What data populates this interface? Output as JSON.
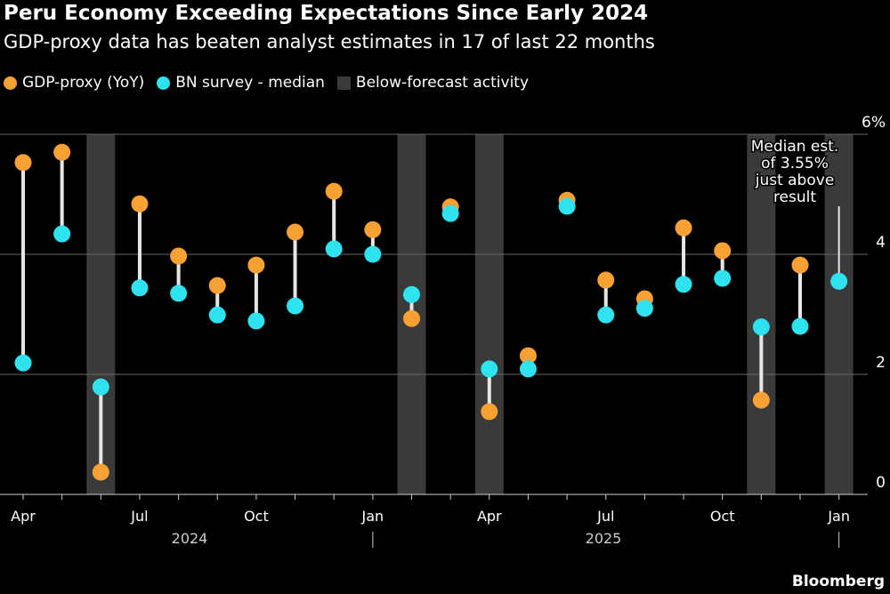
{
  "chart_data": {
    "type": "scatter",
    "title": "Peru Economy Exceeding Expectations Since Early 2024",
    "subtitle": "GDP-proxy data has beaten analyst estimates in 17 of last 22 months",
    "ylim": [
      0,
      6
    ],
    "yticks": [
      "0",
      "2",
      "4",
      "6%"
    ],
    "ytick_values": [
      0,
      2,
      4,
      6
    ],
    "grid": true,
    "legend_placement": "top-left",
    "months": [
      "2024-04",
      "2024-05",
      "2024-06",
      "2024-07",
      "2024-08",
      "2024-09",
      "2024-10",
      "2024-11",
      "2024-12",
      "2025-01",
      "2025-02",
      "2025-03",
      "2025-04",
      "2025-05",
      "2025-06",
      "2025-07",
      "2025-08",
      "2025-09",
      "2025-10",
      "2025-11",
      "2025-12",
      "2026-01"
    ],
    "xtick_labels": [
      {
        "i": 0,
        "label": "Apr"
      },
      {
        "i": 3,
        "label": "Jul"
      },
      {
        "i": 6,
        "label": "Oct"
      },
      {
        "i": 9,
        "label": "Jan"
      },
      {
        "i": 12,
        "label": "Apr"
      },
      {
        "i": 15,
        "label": "Jul"
      },
      {
        "i": 18,
        "label": "Oct"
      },
      {
        "i": 21,
        "label": "Jan"
      }
    ],
    "year_labels": [
      {
        "label": "2024"
      },
      {
        "label": "2025"
      }
    ],
    "series": [
      {
        "name": "GDP-proxy (YoY)",
        "color": "#f7a033",
        "values": [
          5.53,
          5.7,
          0.37,
          4.84,
          3.97,
          3.48,
          3.82,
          4.37,
          5.05,
          4.41,
          2.93,
          4.79,
          1.38,
          2.31,
          4.9,
          3.57,
          3.26,
          4.44,
          4.06,
          1.57,
          3.82,
          null
        ]
      },
      {
        "name": "BN survey - median",
        "color": "#2ee3ef",
        "values": [
          2.19,
          4.34,
          1.79,
          3.44,
          3.35,
          2.99,
          2.89,
          3.14,
          4.09,
          4.0,
          3.33,
          4.68,
          2.09,
          2.09,
          4.8,
          2.99,
          3.1,
          3.5,
          3.6,
          2.79,
          2.8,
          3.55
        ]
      }
    ],
    "shaded": {
      "name": "Below-forecast activity",
      "color": "#3a3a3a",
      "months": [
        "2024-06",
        "2025-02",
        "2025-04",
        "2025-11",
        "2026-01"
      ]
    },
    "annotation": {
      "lines": [
        "Median est.",
        "of 3.55%",
        "just above",
        "result"
      ]
    }
  },
  "source": "Bloomberg"
}
